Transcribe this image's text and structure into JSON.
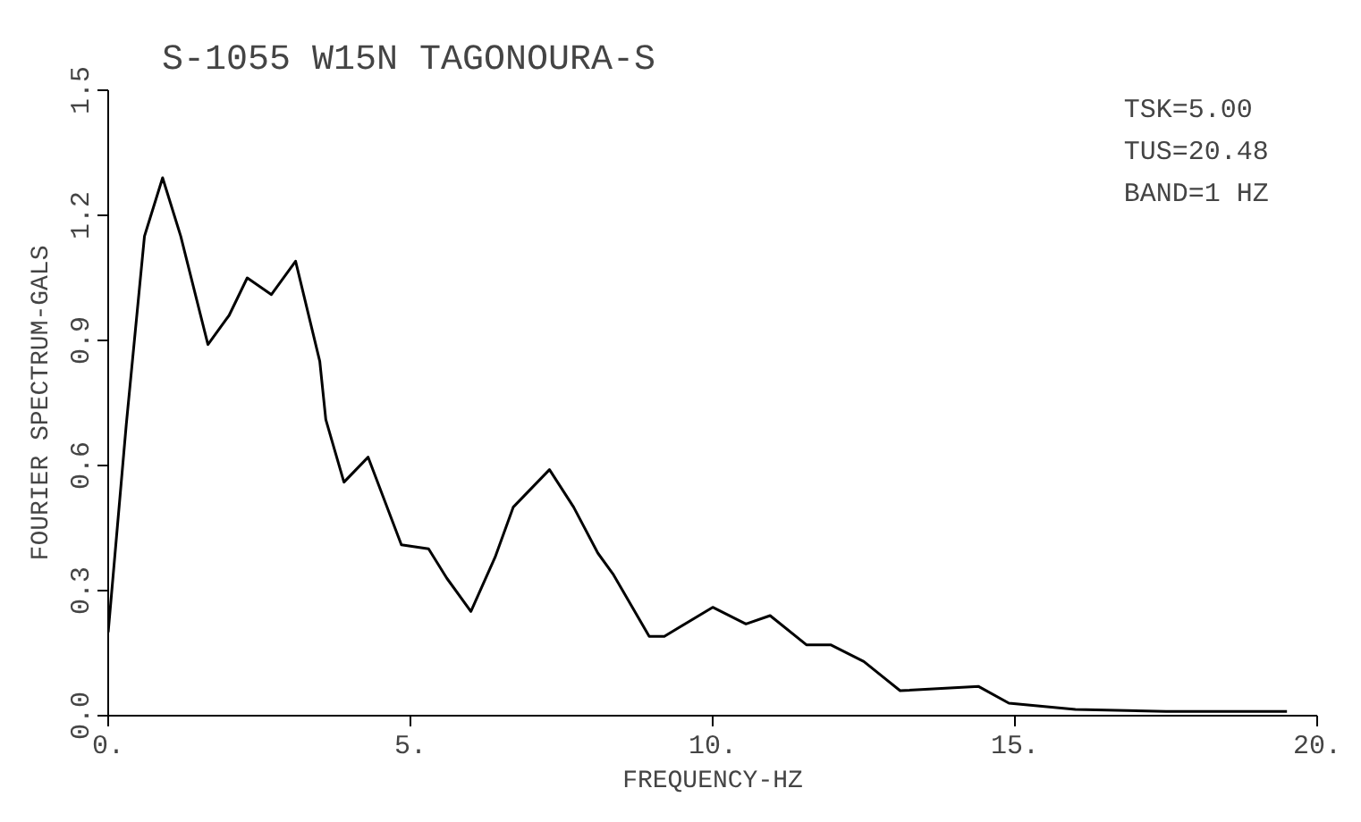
{
  "chart_data": {
    "type": "line",
    "title": "S-1055   W15N      TAGONOURA-S",
    "xlabel": "FREQUENCY-HZ",
    "ylabel": "FOURIER SPECTRUM-GALS",
    "annotations": [
      "TSK=5.00",
      "TUS=20.48",
      "BAND=1 HZ"
    ],
    "x": [
      0,
      0.3,
      0.6,
      0.9,
      1.2,
      1.65,
      2.0,
      2.3,
      2.7,
      3.1,
      3.5,
      3.6,
      3.9,
      4.3,
      4.85,
      5.3,
      5.6,
      6.0,
      6.4,
      6.7,
      7.3,
      7.7,
      8.1,
      8.35,
      8.95,
      9.2,
      10.0,
      10.55,
      10.95,
      11.55,
      11.95,
      12.5,
      13.1,
      14.4,
      14.9,
      16.0,
      17.5,
      19.5
    ],
    "series": [
      {
        "color": "#000000",
        "values": [
          0.2,
          0.7,
          1.15,
          1.29,
          1.15,
          0.89,
          0.96,
          1.05,
          1.01,
          1.09,
          0.85,
          0.71,
          0.56,
          0.62,
          0.41,
          0.4,
          0.33,
          0.25,
          0.38,
          0.5,
          0.59,
          0.5,
          0.39,
          0.34,
          0.19,
          0.19,
          0.26,
          0.22,
          0.24,
          0.17,
          0.17,
          0.13,
          0.06,
          0.07,
          0.03,
          0.015,
          0.01,
          0.01
        ]
      }
    ],
    "xlim": [
      0,
      20
    ],
    "ylim": [
      0,
      1.5
    ],
    "xticks": [
      {
        "value": 0,
        "label": "0."
      },
      {
        "value": 5,
        "label": "5."
      },
      {
        "value": 10,
        "label": "10."
      },
      {
        "value": 15,
        "label": "15."
      },
      {
        "value": 20,
        "label": "20."
      }
    ],
    "yticks": [
      {
        "value": 0,
        "label": "0.0"
      },
      {
        "value": 0.3,
        "label": "0.3"
      },
      {
        "value": 0.6,
        "label": "0.6"
      },
      {
        "value": 0.9,
        "label": "0.9"
      },
      {
        "value": 1.2,
        "label": "1.2"
      },
      {
        "value": 1.5,
        "label": "1.5"
      }
    ],
    "grid": false,
    "marker": "none",
    "line_style": "solid"
  }
}
